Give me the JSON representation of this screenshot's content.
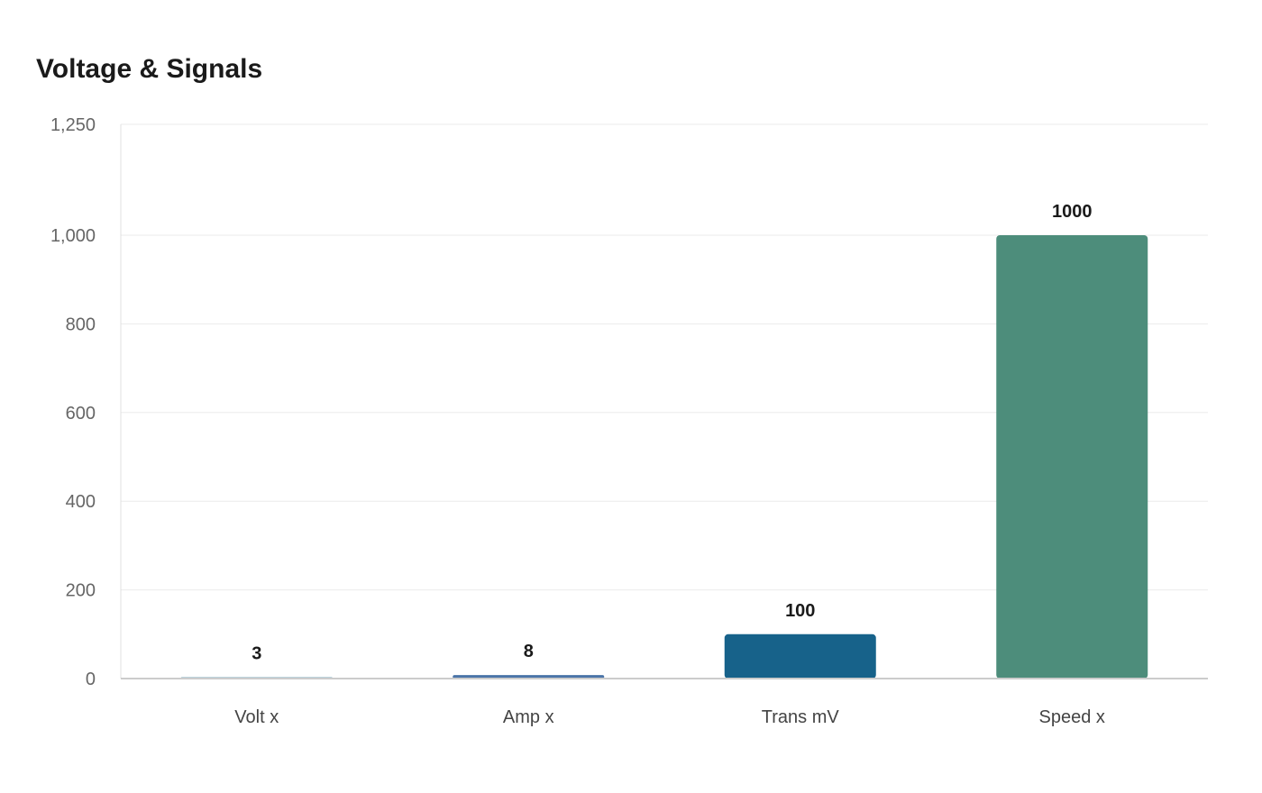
{
  "chart_data": {
    "type": "bar",
    "title": "Voltage & Signals",
    "categories": [
      "Volt x",
      "Amp x",
      "Trans mV",
      "Speed x"
    ],
    "values": [
      3,
      8,
      100,
      1000
    ],
    "data_labels": [
      "3",
      "8",
      "100",
      "1000"
    ],
    "colors": [
      "#7aa6b8",
      "#4a74a8",
      "#17628a",
      "#4d8d7b"
    ],
    "ylim": [
      0,
      1250
    ],
    "yticks": [
      0,
      200,
      400,
      600,
      800,
      1000,
      1250
    ],
    "ytick_labels": [
      "0",
      "200",
      "400",
      "600",
      "800",
      "1,000",
      "1,250"
    ],
    "grid": true,
    "xlabel": "",
    "ylabel": ""
  }
}
